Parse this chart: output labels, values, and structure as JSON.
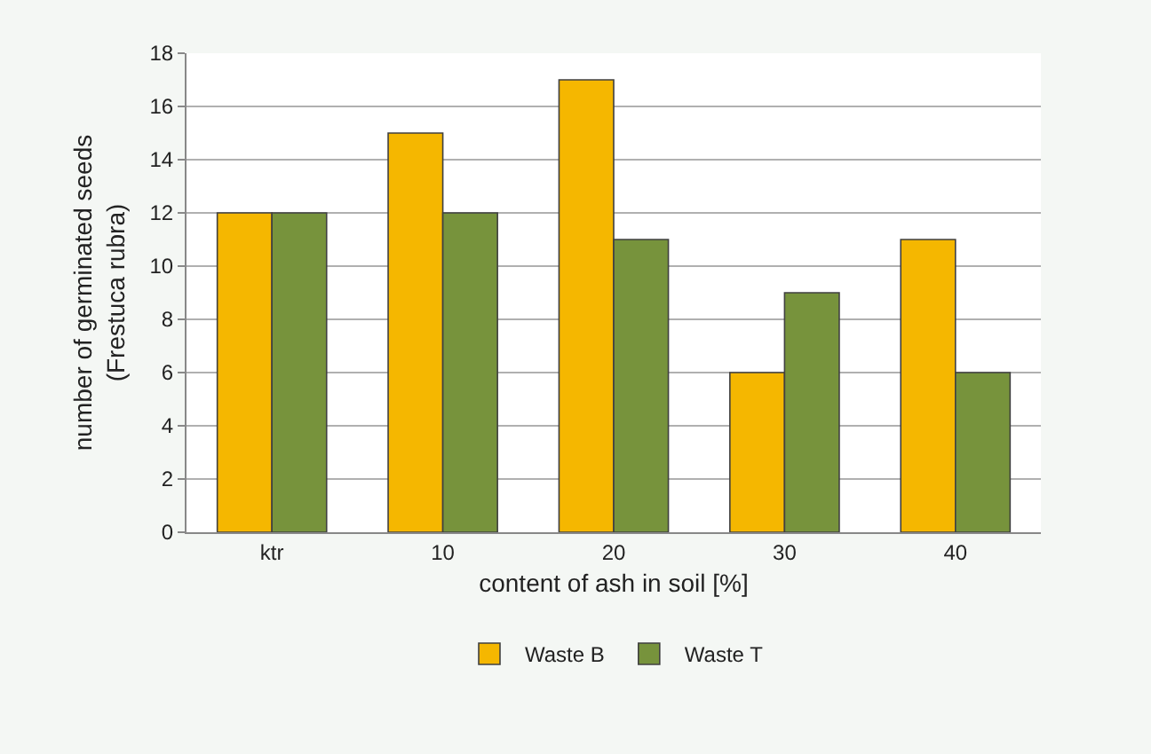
{
  "chart_data": {
    "type": "bar",
    "xlabel": "content of ash in soil [%]",
    "ylabel": "number of germinated seeds\n(Frestuca rubra)",
    "categories": [
      "ktr",
      "10",
      "20",
      "30",
      "40"
    ],
    "series": [
      {
        "name": "Waste B",
        "color": "#f5b700",
        "values": [
          12,
          15,
          17,
          6,
          11
        ]
      },
      {
        "name": "Waste T",
        "color": "#77933c",
        "values": [
          12,
          12,
          11,
          9,
          6
        ]
      }
    ],
    "ylim": [
      0,
      18
    ],
    "yticks": [
      0,
      2,
      4,
      6,
      8,
      10,
      12,
      14,
      16,
      18
    ],
    "grid": "y",
    "legend": "bottom"
  }
}
